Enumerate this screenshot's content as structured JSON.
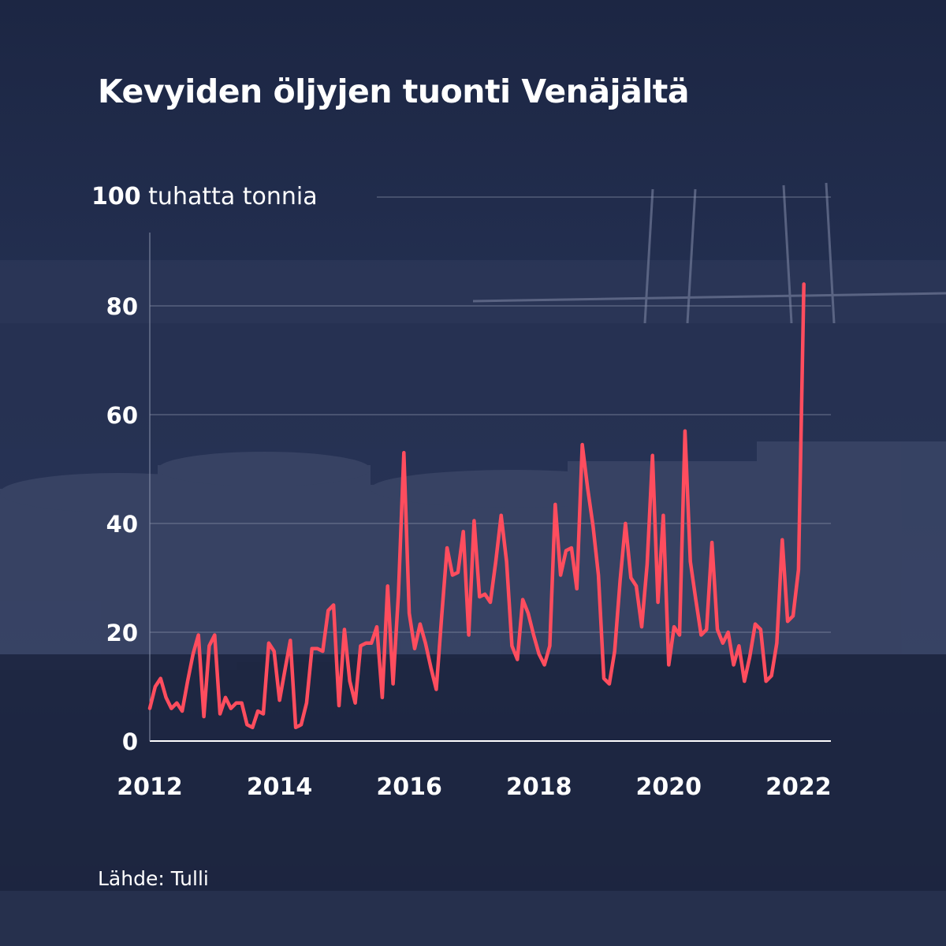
{
  "title": "Kevyiden öljyjen tuonti Venäjältä",
  "source": "Lähde: Tulli",
  "colors": {
    "background": "#1f2a47",
    "line": "#ff4d5e",
    "grid": "#8a93ab",
    "text": "#ffffff"
  },
  "chart_data": {
    "type": "line",
    "title": "Kevyiden öljyjen tuonti Venäjältä",
    "ylabel_value": "100",
    "ylabel_unit": "tuhatta tonnia",
    "xlabel": "",
    "ylim": [
      0,
      100
    ],
    "xlim": [
      2012,
      2022.5
    ],
    "y_ticks": [
      0,
      20,
      40,
      60,
      80
    ],
    "x_ticks": [
      2012,
      2014,
      2016,
      2018,
      2020,
      2022
    ],
    "grid": true,
    "series": [
      {
        "frequency": "monthly",
        "start": "2012-01",
        "values": [
          6,
          10,
          11.5,
          8,
          6,
          7,
          5.5,
          11,
          16,
          19.5,
          4.5,
          17.5,
          19.5,
          5,
          8,
          6,
          7,
          7,
          3,
          2.5,
          5.5,
          5,
          18,
          16.5,
          7.5,
          13,
          18.5,
          2.5,
          3,
          7,
          17,
          17,
          16.5,
          24,
          25,
          6.5,
          20.5,
          11,
          7,
          17.5,
          18,
          18,
          21,
          8,
          28.5,
          10.5,
          27,
          53,
          23.5,
          17,
          21.5,
          18,
          13.5,
          9.5,
          23,
          35.5,
          30.5,
          31,
          38.5,
          19.5,
          40.5,
          26.5,
          27,
          25.5,
          33,
          41.5,
          33,
          17.5,
          15,
          26,
          23.5,
          19.5,
          16,
          14,
          17.5,
          43.5,
          30.5,
          35,
          35.5,
          28,
          54.5,
          46.5,
          39.5,
          30.5,
          11.5,
          10.5,
          16.5,
          29.5,
          40,
          30,
          28.5,
          21,
          32.5,
          52.5,
          25.5,
          41.5,
          14,
          21,
          19.5,
          57,
          33,
          26,
          19.5,
          20.5,
          36.5,
          20.5,
          18,
          20,
          14,
          17.5,
          11,
          15.5,
          21.5,
          20.5,
          11,
          12,
          18,
          37,
          22,
          23,
          31.5,
          84
        ]
      }
    ]
  }
}
